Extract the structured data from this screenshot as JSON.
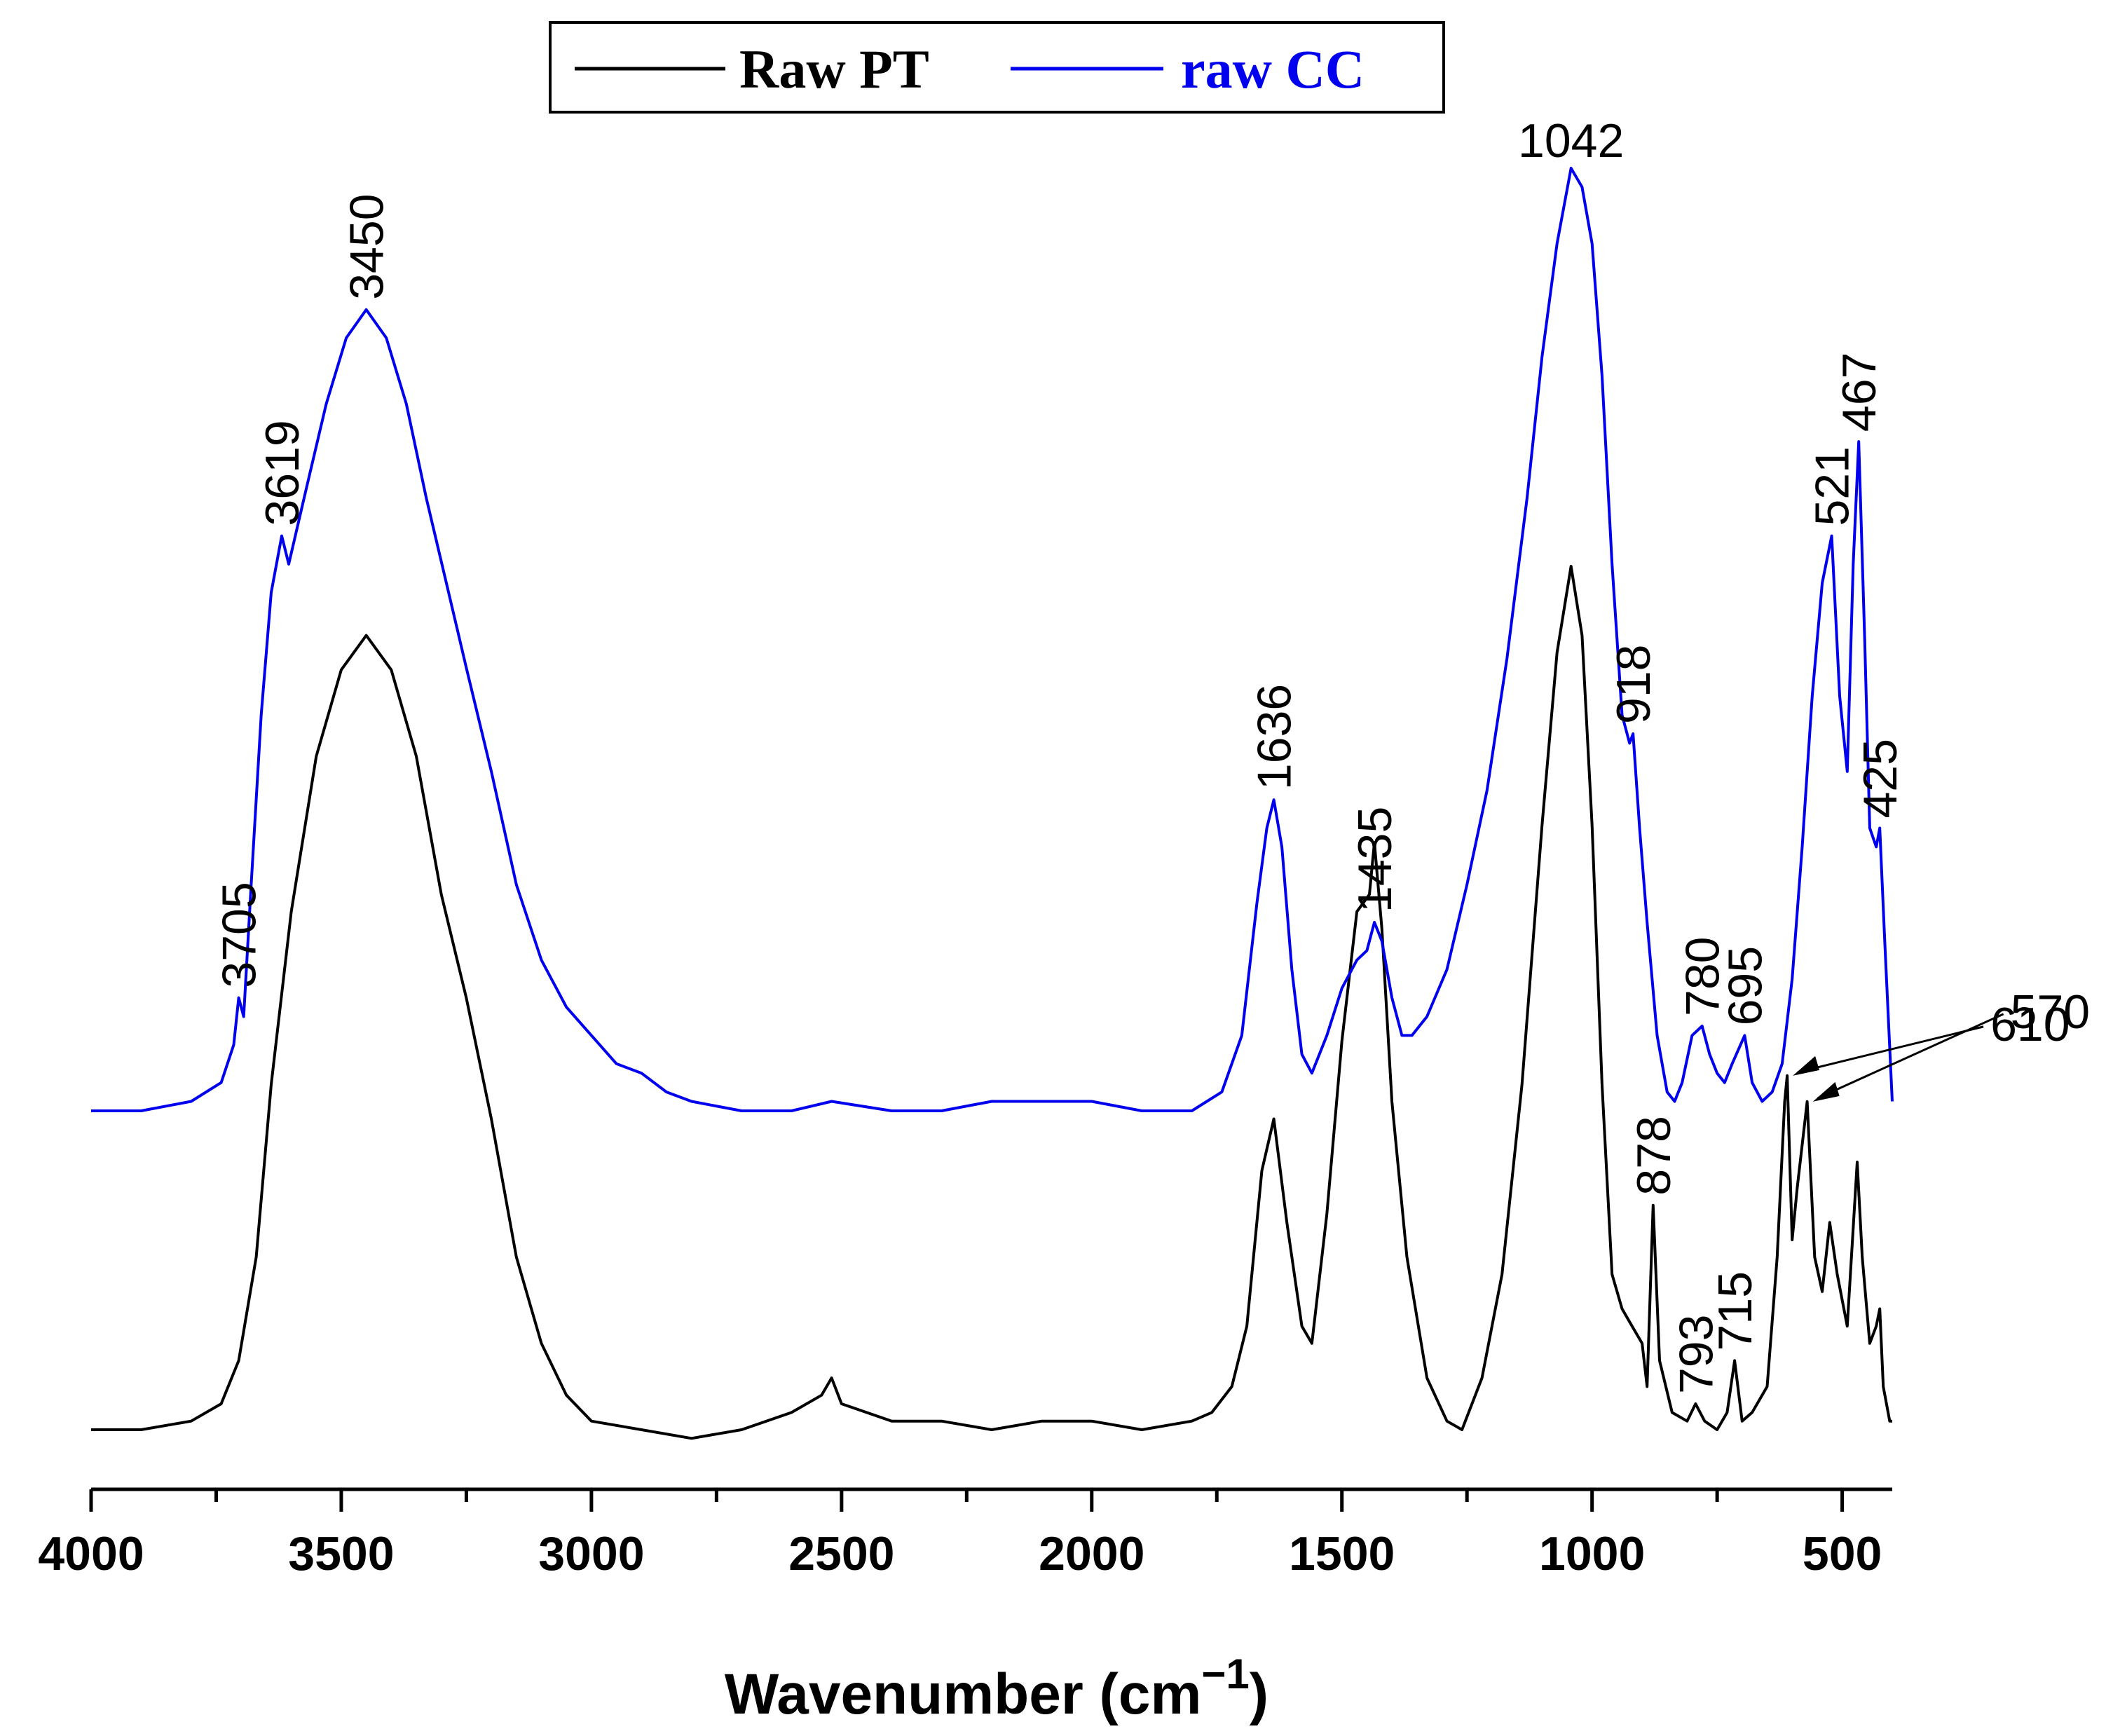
{
  "chart_data": {
    "type": "line",
    "title": "",
    "xlabel": "Wavenumber (cm",
    "xlabel_superscript": "−1",
    "xlabel_close": ")",
    "ylabel": "",
    "xlim": [
      4000,
      400
    ],
    "x_reversed": true,
    "x_ticks": [
      "4000",
      "3500",
      "3000",
      "2500",
      "2000",
      "1500",
      "1000",
      "500"
    ],
    "x_tick_values": [
      4000,
      3500,
      3000,
      2500,
      2000,
      1500,
      1000,
      500
    ],
    "y_ticks_visible": false,
    "grid": false,
    "legend": {
      "placement": "top-center",
      "entries": [
        {
          "label": "Raw PT",
          "color": "#000000"
        },
        {
          "label": "raw CC",
          "color": "#0000ee"
        }
      ]
    },
    "series": [
      {
        "name": "Raw PT",
        "color": "#000000",
        "points": [
          [
            4000,
            0.0
          ],
          [
            3900,
            0.0
          ],
          [
            3800,
            0.01
          ],
          [
            3740,
            0.03
          ],
          [
            3705,
            0.08
          ],
          [
            3670,
            0.2
          ],
          [
            3640,
            0.4
          ],
          [
            3600,
            0.6
          ],
          [
            3550,
            0.78
          ],
          [
            3500,
            0.88
          ],
          [
            3450,
            0.92
          ],
          [
            3400,
            0.88
          ],
          [
            3350,
            0.78
          ],
          [
            3300,
            0.62
          ],
          [
            3250,
            0.5
          ],
          [
            3200,
            0.36
          ],
          [
            3150,
            0.2
          ],
          [
            3100,
            0.1
          ],
          [
            3050,
            0.04
          ],
          [
            3000,
            0.01
          ],
          [
            2900,
            0.0
          ],
          [
            2800,
            -0.01
          ],
          [
            2700,
            0.0
          ],
          [
            2600,
            0.02
          ],
          [
            2540,
            0.04
          ],
          [
            2520,
            0.06
          ],
          [
            2500,
            0.03
          ],
          [
            2400,
            0.01
          ],
          [
            2300,
            0.01
          ],
          [
            2200,
            0.0
          ],
          [
            2100,
            0.01
          ],
          [
            2000,
            0.01
          ],
          [
            1900,
            0.0
          ],
          [
            1800,
            0.01
          ],
          [
            1760,
            0.02
          ],
          [
            1720,
            0.05
          ],
          [
            1690,
            0.12
          ],
          [
            1660,
            0.3
          ],
          [
            1636,
            0.36
          ],
          [
            1610,
            0.24
          ],
          [
            1580,
            0.12
          ],
          [
            1560,
            0.1
          ],
          [
            1530,
            0.25
          ],
          [
            1500,
            0.45
          ],
          [
            1470,
            0.6
          ],
          [
            1445,
            0.62
          ],
          [
            1435,
            0.68
          ],
          [
            1420,
            0.58
          ],
          [
            1400,
            0.38
          ],
          [
            1370,
            0.2
          ],
          [
            1330,
            0.06
          ],
          [
            1290,
            0.01
          ],
          [
            1260,
            0.0
          ],
          [
            1220,
            0.06
          ],
          [
            1180,
            0.18
          ],
          [
            1140,
            0.4
          ],
          [
            1100,
            0.7
          ],
          [
            1070,
            0.9
          ],
          [
            1042,
            1.0
          ],
          [
            1020,
            0.92
          ],
          [
            1000,
            0.7
          ],
          [
            980,
            0.4
          ],
          [
            960,
            0.18
          ],
          [
            940,
            0.14
          ],
          [
            920,
            0.12
          ],
          [
            900,
            0.1
          ],
          [
            890,
            0.05
          ],
          [
            878,
            0.26
          ],
          [
            865,
            0.08
          ],
          [
            840,
            0.02
          ],
          [
            810,
            0.01
          ],
          [
            793,
            0.03
          ],
          [
            775,
            0.01
          ],
          [
            750,
            0.0
          ],
          [
            730,
            0.02
          ],
          [
            715,
            0.08
          ],
          [
            700,
            0.01
          ],
          [
            680,
            0.02
          ],
          [
            650,
            0.05
          ],
          [
            630,
            0.2
          ],
          [
            615,
            0.38
          ],
          [
            610,
            0.41
          ],
          [
            600,
            0.22
          ],
          [
            590,
            0.28
          ],
          [
            570,
            0.38
          ],
          [
            555,
            0.2
          ],
          [
            540,
            0.16
          ],
          [
            525,
            0.24
          ],
          [
            510,
            0.18
          ],
          [
            490,
            0.12
          ],
          [
            470,
            0.31
          ],
          [
            460,
            0.2
          ],
          [
            445,
            0.1
          ],
          [
            432,
            0.12
          ],
          [
            425,
            0.14
          ],
          [
            418,
            0.05
          ],
          [
            405,
            0.01
          ],
          [
            400,
            0.01
          ]
        ]
      },
      {
        "name": "raw CC",
        "color": "#0000ee",
        "points": [
          [
            4000,
            0.0
          ],
          [
            3900,
            0.0
          ],
          [
            3800,
            0.01
          ],
          [
            3740,
            0.03
          ],
          [
            3715,
            0.07
          ],
          [
            3705,
            0.12
          ],
          [
            3695,
            0.1
          ],
          [
            3680,
            0.24
          ],
          [
            3660,
            0.42
          ],
          [
            3640,
            0.55
          ],
          [
            3619,
            0.61
          ],
          [
            3605,
            0.58
          ],
          [
            3570,
            0.66
          ],
          [
            3530,
            0.75
          ],
          [
            3490,
            0.82
          ],
          [
            3450,
            0.85
          ],
          [
            3410,
            0.82
          ],
          [
            3370,
            0.75
          ],
          [
            3330,
            0.65
          ],
          [
            3290,
            0.56
          ],
          [
            3250,
            0.47
          ],
          [
            3200,
            0.36
          ],
          [
            3150,
            0.24
          ],
          [
            3100,
            0.16
          ],
          [
            3050,
            0.11
          ],
          [
            3000,
            0.08
          ],
          [
            2950,
            0.05
          ],
          [
            2900,
            0.04
          ],
          [
            2850,
            0.02
          ],
          [
            2800,
            0.01
          ],
          [
            2700,
            0.0
          ],
          [
            2600,
            0.0
          ],
          [
            2520,
            0.01
          ],
          [
            2400,
            0.0
          ],
          [
            2300,
            0.0
          ],
          [
            2200,
            0.01
          ],
          [
            2100,
            0.01
          ],
          [
            2000,
            0.01
          ],
          [
            1900,
            0.0
          ],
          [
            1800,
            0.0
          ],
          [
            1740,
            0.02
          ],
          [
            1700,
            0.08
          ],
          [
            1670,
            0.22
          ],
          [
            1650,
            0.3
          ],
          [
            1636,
            0.33
          ],
          [
            1620,
            0.28
          ],
          [
            1600,
            0.15
          ],
          [
            1580,
            0.06
          ],
          [
            1560,
            0.04
          ],
          [
            1530,
            0.08
          ],
          [
            1500,
            0.13
          ],
          [
            1470,
            0.16
          ],
          [
            1450,
            0.17
          ],
          [
            1435,
            0.2
          ],
          [
            1420,
            0.18
          ],
          [
            1400,
            0.12
          ],
          [
            1380,
            0.08
          ],
          [
            1360,
            0.08
          ],
          [
            1330,
            0.1
          ],
          [
            1290,
            0.15
          ],
          [
            1250,
            0.24
          ],
          [
            1210,
            0.34
          ],
          [
            1170,
            0.48
          ],
          [
            1130,
            0.65
          ],
          [
            1100,
            0.8
          ],
          [
            1070,
            0.92
          ],
          [
            1042,
            1.0
          ],
          [
            1020,
            0.98
          ],
          [
            1000,
            0.92
          ],
          [
            980,
            0.78
          ],
          [
            960,
            0.58
          ],
          [
            940,
            0.42
          ],
          [
            925,
            0.39
          ],
          [
            918,
            0.4
          ],
          [
            905,
            0.3
          ],
          [
            890,
            0.2
          ],
          [
            870,
            0.08
          ],
          [
            850,
            0.02
          ],
          [
            835,
            0.01
          ],
          [
            820,
            0.03
          ],
          [
            800,
            0.08
          ],
          [
            780,
            0.09
          ],
          [
            765,
            0.06
          ],
          [
            750,
            0.04
          ],
          [
            735,
            0.03
          ],
          [
            720,
            0.05
          ],
          [
            695,
            0.08
          ],
          [
            680,
            0.03
          ],
          [
            660,
            0.01
          ],
          [
            640,
            0.02
          ],
          [
            620,
            0.05
          ],
          [
            600,
            0.14
          ],
          [
            580,
            0.28
          ],
          [
            560,
            0.44
          ],
          [
            540,
            0.56
          ],
          [
            521,
            0.61
          ],
          [
            505,
            0.44
          ],
          [
            490,
            0.36
          ],
          [
            478,
            0.58
          ],
          [
            467,
            0.71
          ],
          [
            455,
            0.5
          ],
          [
            445,
            0.3
          ],
          [
            432,
            0.28
          ],
          [
            425,
            0.3
          ],
          [
            415,
            0.18
          ],
          [
            400,
            0.01
          ]
        ]
      }
    ],
    "annotations": [
      {
        "series": "raw CC",
        "x": 3705,
        "text": "3705",
        "rotated": true
      },
      {
        "series": "raw CC",
        "x": 3619,
        "text": "3619",
        "rotated": true
      },
      {
        "series": "raw CC",
        "x": 3450,
        "text": "3450",
        "rotated": true
      },
      {
        "series": "raw CC",
        "x": 1636,
        "text": "1636",
        "rotated": true
      },
      {
        "series": "raw CC",
        "x": 1435,
        "text": "1435",
        "rotated": true
      },
      {
        "series": "raw CC",
        "x": 1042,
        "text": "1042",
        "rotated": false
      },
      {
        "series": "raw CC",
        "x": 918,
        "text": "918",
        "rotated": true
      },
      {
        "series": "raw CC",
        "x": 780,
        "text": "780",
        "rotated": true
      },
      {
        "series": "raw CC",
        "x": 695,
        "text": "695",
        "rotated": true
      },
      {
        "series": "raw CC",
        "x": 521,
        "text": "521",
        "rotated": true
      },
      {
        "series": "raw CC",
        "x": 467,
        "text": "467",
        "rotated": true
      },
      {
        "series": "raw CC",
        "x": 425,
        "text": "425",
        "rotated": true
      },
      {
        "series": "Raw PT",
        "x": 878,
        "text": "878",
        "rotated": true
      },
      {
        "series": "Raw PT",
        "x": 793,
        "text": "793",
        "rotated": true
      },
      {
        "series": "Raw PT",
        "x": 715,
        "text": "715",
        "rotated": true
      },
      {
        "series": "Raw PT",
        "x": 610,
        "text": "610",
        "rotated": false,
        "arrow": true
      },
      {
        "series": "Raw PT",
        "x": 570,
        "text": "570",
        "rotated": false,
        "arrow": true
      }
    ]
  }
}
